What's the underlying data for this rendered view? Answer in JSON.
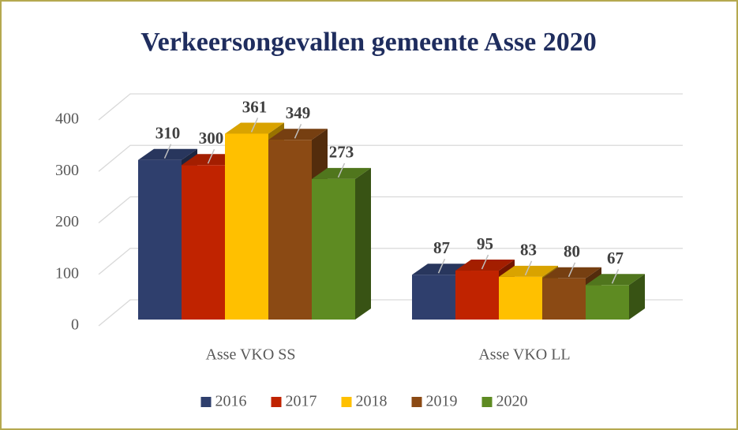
{
  "chart_data": {
    "type": "bar3d",
    "title": "Verkeersongevallen gemeente Asse 2020",
    "categories": [
      "Asse VKO SS",
      "Asse VKO LL"
    ],
    "series": [
      {
        "name": "2016",
        "color": "#2f3f6d",
        "values": [
          310,
          87
        ]
      },
      {
        "name": "2017",
        "color": "#c02300",
        "values": [
          300,
          95
        ]
      },
      {
        "name": "2018",
        "color": "#ffc000",
        "values": [
          361,
          83
        ]
      },
      {
        "name": "2019",
        "color": "#8b4a14",
        "values": [
          349,
          80
        ]
      },
      {
        "name": "2020",
        "color": "#5e8b22",
        "values": [
          273,
          67
        ]
      }
    ],
    "ylim": [
      0,
      400
    ],
    "yticks": [
      0,
      100,
      200,
      300,
      400
    ],
    "grid": true,
    "legend": "bottom"
  }
}
